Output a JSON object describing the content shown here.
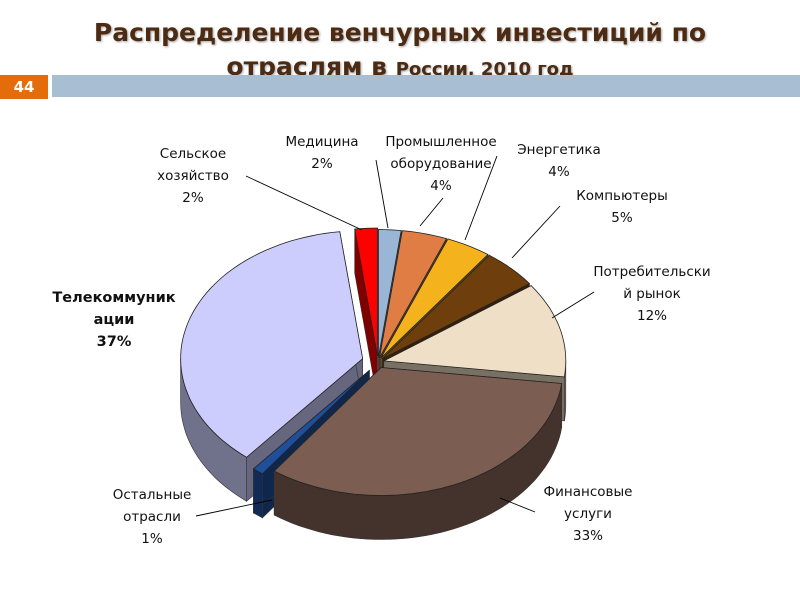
{
  "slide": {
    "title_line1": "Распределение венчурных инвестиций по",
    "title_line2_a": "отраслям в ",
    "title_line2_b": "России, 2010 год",
    "slide_number": "44"
  },
  "chart_data": {
    "type": "pie",
    "title": "Распределение венчурных инвестиций по отраслям в России, 2010 год",
    "slices": [
      {
        "name": "Медицина",
        "value": 2,
        "label": "2%",
        "color": "#9ab6d6"
      },
      {
        "name": "Промышленное оборудование",
        "value": 4,
        "label": "4%",
        "color": "#e07d45"
      },
      {
        "name": "Энергетика",
        "value": 4,
        "label": "4%",
        "color": "#f4b21c"
      },
      {
        "name": "Компьютеры",
        "value": 5,
        "label": "5%",
        "color": "#6e3f0d"
      },
      {
        "name": "Потребительский рынок",
        "value": 12,
        "label": "12%",
        "color": "#efdfc6"
      },
      {
        "name": "Финансовые услуги",
        "value": 33,
        "label": "33%",
        "color": "#7c5d52"
      },
      {
        "name": "Остальные отрасли",
        "value": 1,
        "label": "1%",
        "color": "#1f4e9a"
      },
      {
        "name": "Телекоммуникации",
        "value": 37,
        "label": "37%",
        "color": "#cccdfc"
      },
      {
        "name": "Сельское хозяйство",
        "value": 2,
        "label": "2%",
        "color": "#ff0000"
      }
    ],
    "labels": [
      {
        "lines": [
          "Медицина",
          "2%"
        ],
        "bold": false
      },
      {
        "lines": [
          "Промышленное",
          "оборудование",
          "4%"
        ],
        "bold": false
      },
      {
        "lines": [
          "Энергетика",
          "4%"
        ],
        "bold": false
      },
      {
        "lines": [
          "Компьютеры",
          "5%"
        ],
        "bold": false
      },
      {
        "lines": [
          "Потребительски",
          "й рынок",
          "12%"
        ],
        "bold": false
      },
      {
        "lines": [
          "Финансовые",
          "услуги",
          "33%"
        ],
        "bold": false
      },
      {
        "lines": [
          "Остальные",
          "отрасли",
          "1%"
        ],
        "bold": false
      },
      {
        "lines": [
          "Телекоммуник",
          "ации",
          "37%"
        ],
        "bold": true
      },
      {
        "lines": [
          "Сельское",
          "хозяйство",
          "2%"
        ],
        "bold": false
      }
    ]
  }
}
